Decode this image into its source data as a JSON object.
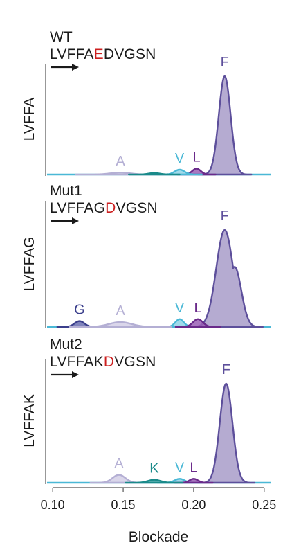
{
  "colors": {
    "F": "#5d4f9b",
    "F_fill": "#a89cc9",
    "L": "#6a2a8a",
    "L_fill": "#9a5fb5",
    "V": "#4ab8d6",
    "V_fill": "#8fd4e6",
    "A": "#b4afd4",
    "A_fill": "#d3cfe6",
    "G": "#3b3f8c",
    "G_fill": "#6a6eb0",
    "K": "#1a8a8a",
    "K_fill": "#4aa8a8",
    "baseline": "#4ab8d6",
    "mutation": "#cc1f1f",
    "text": "#1a1a1a"
  },
  "xaxis": {
    "label": "Blockade",
    "ticks": [
      0.1,
      0.15,
      0.2,
      0.25
    ],
    "tick_labels": [
      "0.10",
      "0.15",
      "0.20",
      "0.25"
    ],
    "range": [
      0.095,
      0.255
    ]
  },
  "chart_data": [
    {
      "type": "area",
      "title": "WT",
      "sequence": {
        "prefix": "LVFFA",
        "mutation": "E",
        "suffix": "DVGSN"
      },
      "ylabel": "LVFFA",
      "series": [
        {
          "name": "A",
          "peak_x": 0.148,
          "height": 0.02,
          "width": 0.007
        },
        {
          "name": "K",
          "peak_x": 0.172,
          "height": 0.015,
          "width": 0.004
        },
        {
          "name": "V",
          "peak_x": 0.19,
          "height": 0.05,
          "width": 0.0035
        },
        {
          "name": "L",
          "peak_x": 0.202,
          "height": 0.06,
          "width": 0.003
        },
        {
          "name": "F",
          "peak_x": 0.222,
          "height": 1.0,
          "width": 0.0042
        }
      ],
      "peak_labels": [
        "A",
        "V",
        "L",
        "F"
      ]
    },
    {
      "type": "area",
      "title": "Mut1",
      "sequence": {
        "prefix": "LVFFAG",
        "mutation": "D",
        "suffix": "VGSN"
      },
      "ylabel": "LVFFAG",
      "series": [
        {
          "name": "G",
          "peak_x": 0.119,
          "height": 0.06,
          "width": 0.0035
        },
        {
          "name": "A",
          "peak_x": 0.148,
          "height": 0.05,
          "width": 0.008
        },
        {
          "name": "V",
          "peak_x": 0.19,
          "height": 0.08,
          "width": 0.003
        },
        {
          "name": "L",
          "peak_x": 0.203,
          "height": 0.08,
          "width": 0.0035
        },
        {
          "name": "F",
          "peak_x": 0.222,
          "height": 1.0,
          "width": 0.006
        }
      ],
      "peak_labels": [
        "G",
        "A",
        "V",
        "L",
        "F"
      ]
    },
    {
      "type": "area",
      "title": "Mut2",
      "sequence": {
        "prefix": "LVFFAK",
        "mutation": "D",
        "suffix": "VGSN"
      },
      "ylabel": "LVFFAK",
      "series": [
        {
          "name": "A",
          "peak_x": 0.147,
          "height": 0.08,
          "width": 0.0045
        },
        {
          "name": "K",
          "peak_x": 0.172,
          "height": 0.03,
          "width": 0.0045
        },
        {
          "name": "V",
          "peak_x": 0.19,
          "height": 0.04,
          "width": 0.0035
        },
        {
          "name": "L",
          "peak_x": 0.2,
          "height": 0.04,
          "width": 0.003
        },
        {
          "name": "F",
          "peak_x": 0.223,
          "height": 1.0,
          "width": 0.0045
        }
      ],
      "peak_labels": [
        "A",
        "K",
        "V",
        "L",
        "F"
      ]
    }
  ]
}
